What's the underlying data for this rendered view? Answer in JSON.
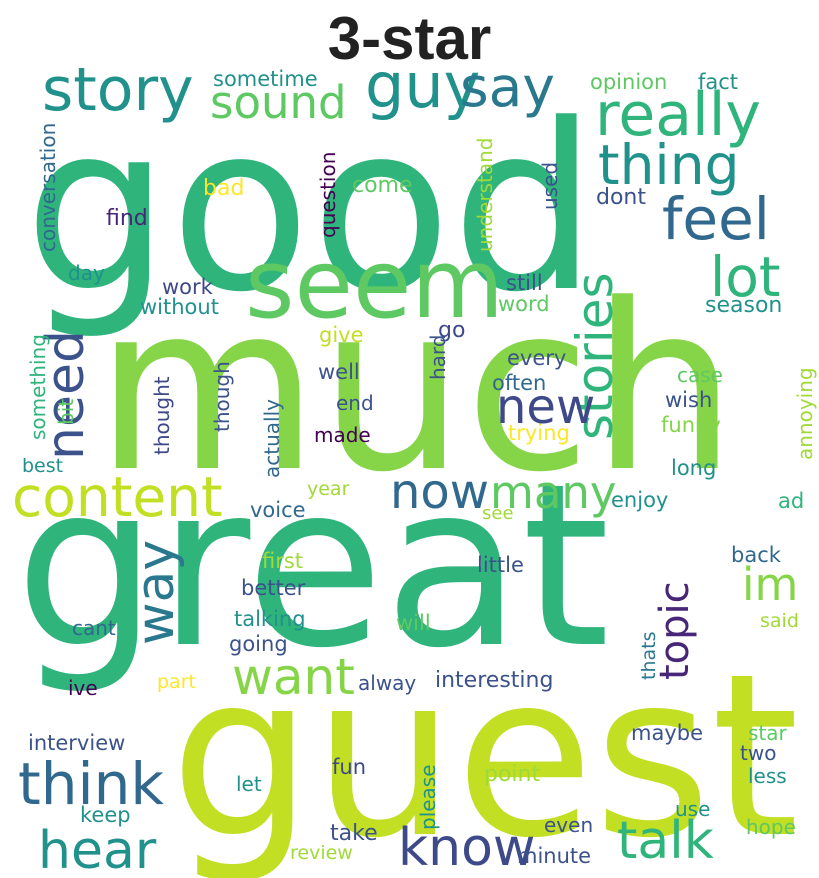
{
  "title": "3-star",
  "colors": {
    "background": "#ffffff",
    "title": "#222222",
    "palette": [
      "#440154",
      "#3b528b",
      "#21918c",
      "#5ec962",
      "#fde725",
      "#2fb47c",
      "#86d549",
      "#c2df23"
    ]
  },
  "words": [
    {
      "text": "good",
      "color": "#2fb47c"
    },
    {
      "text": "much",
      "color": "#86d549"
    },
    {
      "text": "great",
      "color": "#2fb47c"
    },
    {
      "text": "guest",
      "color": "#c2df23"
    },
    {
      "text": "seem",
      "color": "#5ec962"
    },
    {
      "text": "story",
      "color": "#21918c"
    },
    {
      "text": "guy",
      "color": "#21918c"
    },
    {
      "text": "say",
      "color": "#2a788e"
    },
    {
      "text": "sound",
      "color": "#5ec962"
    },
    {
      "text": "really",
      "color": "#2fb47c"
    },
    {
      "text": "thing",
      "color": "#21918c"
    },
    {
      "text": "feel",
      "color": "#31688e"
    },
    {
      "text": "lot",
      "color": "#2fb47c"
    },
    {
      "text": "stories",
      "color": "#2fb47c"
    },
    {
      "text": "need",
      "color": "#3b528b"
    },
    {
      "text": "new",
      "color": "#3e4989"
    },
    {
      "text": "content",
      "color": "#c2df23"
    },
    {
      "text": "now",
      "color": "#31688e"
    },
    {
      "text": "many",
      "color": "#5ec962"
    },
    {
      "text": "way",
      "color": "#2a788e"
    },
    {
      "text": "im",
      "color": "#86d549"
    },
    {
      "text": "topic",
      "color": "#482677"
    },
    {
      "text": "want",
      "color": "#86d549"
    },
    {
      "text": "think",
      "color": "#31688e"
    },
    {
      "text": "hear",
      "color": "#21918c"
    },
    {
      "text": "know",
      "color": "#3e4989"
    },
    {
      "text": "talk",
      "color": "#2fb47c"
    },
    {
      "text": "sometime",
      "color": "#21918c"
    },
    {
      "text": "opinion",
      "color": "#5ec962"
    },
    {
      "text": "fact",
      "color": "#21918c"
    },
    {
      "text": "conversation",
      "color": "#31688e"
    },
    {
      "text": "question",
      "color": "#440154"
    },
    {
      "text": "understand",
      "color": "#a0da39"
    },
    {
      "text": "used",
      "color": "#3b528b"
    },
    {
      "text": "come",
      "color": "#5ec962"
    },
    {
      "text": "bad",
      "color": "#fde725"
    },
    {
      "text": "dont",
      "color": "#3b528b"
    },
    {
      "text": "find",
      "color": "#482677"
    },
    {
      "text": "day",
      "color": "#21918c"
    },
    {
      "text": "work",
      "color": "#3e4989"
    },
    {
      "text": "without",
      "color": "#21918c"
    },
    {
      "text": "still",
      "color": "#3b528b"
    },
    {
      "text": "word",
      "color": "#5ec962"
    },
    {
      "text": "season",
      "color": "#21918c"
    },
    {
      "text": "give",
      "color": "#c2df23"
    },
    {
      "text": "go",
      "color": "#3e4989"
    },
    {
      "text": "hard",
      "color": "#3b528b"
    },
    {
      "text": "something",
      "color": "#2fb47c"
    },
    {
      "text": "bit",
      "color": "#5ec962"
    },
    {
      "text": "thought",
      "color": "#3e4989"
    },
    {
      "text": "though",
      "color": "#3b528b"
    },
    {
      "text": "actually",
      "color": "#31688e"
    },
    {
      "text": "well",
      "color": "#3b528b"
    },
    {
      "text": "end",
      "color": "#3b528b"
    },
    {
      "text": "made",
      "color": "#440154"
    },
    {
      "text": "every",
      "color": "#3b528b"
    },
    {
      "text": "often",
      "color": "#31688e"
    },
    {
      "text": "case",
      "color": "#5ec962"
    },
    {
      "text": "wish",
      "color": "#3b528b"
    },
    {
      "text": "trying",
      "color": "#fde725"
    },
    {
      "text": "funny",
      "color": "#86d549"
    },
    {
      "text": "annoying",
      "color": "#a0da39"
    },
    {
      "text": "best",
      "color": "#21918c"
    },
    {
      "text": "long",
      "color": "#21918c"
    },
    {
      "text": "year",
      "color": "#a0da39"
    },
    {
      "text": "enjoy",
      "color": "#21918c"
    },
    {
      "text": "voice",
      "color": "#31688e"
    },
    {
      "text": "see",
      "color": "#a0da39"
    },
    {
      "text": "ad",
      "color": "#2fb47c"
    },
    {
      "text": "first",
      "color": "#a0da39"
    },
    {
      "text": "little",
      "color": "#3b528b"
    },
    {
      "text": "back",
      "color": "#31688e"
    },
    {
      "text": "better",
      "color": "#3b528b"
    },
    {
      "text": "talking",
      "color": "#21918c"
    },
    {
      "text": "will",
      "color": "#5ec962"
    },
    {
      "text": "said",
      "color": "#a0da39"
    },
    {
      "text": "cant",
      "color": "#31688e"
    },
    {
      "text": "going",
      "color": "#3b528b"
    },
    {
      "text": "thats",
      "color": "#2a788e"
    },
    {
      "text": "ive",
      "color": "#440154"
    },
    {
      "text": "part",
      "color": "#fde725"
    },
    {
      "text": "alway",
      "color": "#3b528b"
    },
    {
      "text": "interesting",
      "color": "#3b528b"
    },
    {
      "text": "interview",
      "color": "#3b528b"
    },
    {
      "text": "maybe",
      "color": "#3b528b"
    },
    {
      "text": "star",
      "color": "#5ec962"
    },
    {
      "text": "two",
      "color": "#3b528b"
    },
    {
      "text": "less",
      "color": "#21918c"
    },
    {
      "text": "fun",
      "color": "#3e4989"
    },
    {
      "text": "please",
      "color": "#21918c"
    },
    {
      "text": "point",
      "color": "#a0da39"
    },
    {
      "text": "let",
      "color": "#21918c"
    },
    {
      "text": "keep",
      "color": "#21918c"
    },
    {
      "text": "use",
      "color": "#21918c"
    },
    {
      "text": "hope",
      "color": "#5ec962"
    },
    {
      "text": "take",
      "color": "#3b528b"
    },
    {
      "text": "even",
      "color": "#3b528b"
    },
    {
      "text": "review",
      "color": "#a0da39"
    },
    {
      "text": "minute",
      "color": "#3b528b"
    }
  ]
}
